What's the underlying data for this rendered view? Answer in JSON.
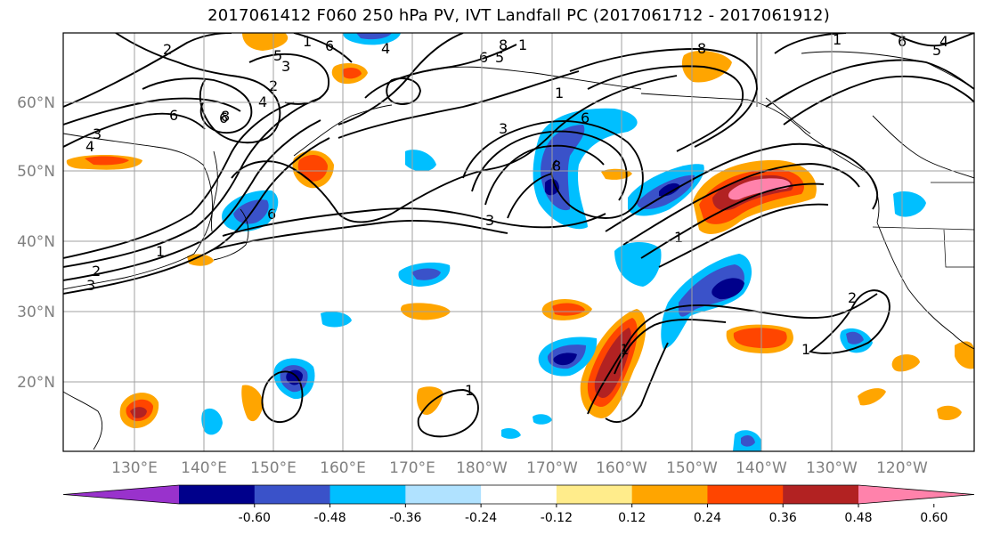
{
  "title": "2017061412 F060 250 hPa PV, IVT Landfall PC (2017061712 - 2017061912)",
  "lat_labels": [
    "60°N",
    "50°N",
    "40°N",
    "30°N",
    "20°N"
  ],
  "lon_labels": [
    "130°E",
    "140°E",
    "150°E",
    "160°E",
    "170°E",
    "180°W",
    "170°W",
    "160°W",
    "150°W",
    "140°W",
    "130°W",
    "120°W"
  ],
  "colorbar": {
    "ticks": [
      "-0.60",
      "-0.48",
      "-0.36",
      "-0.24",
      "-0.12",
      "0.12",
      "0.24",
      "0.36",
      "0.48",
      "0.60"
    ],
    "colors": [
      "#9932cc",
      "#00008b",
      "#3a52c9",
      "#00bfff",
      "#b0e2ff",
      "#ffffff",
      "#ffec8b",
      "#ffa500",
      "#ff4500",
      "#b22222",
      "#ff82ab"
    ]
  },
  "contour_labels": [
    "2",
    "1",
    "6",
    "6",
    "4",
    "5",
    "3",
    "2",
    "4",
    "6",
    "3",
    "4",
    "1",
    "2",
    "3",
    "6",
    "8",
    "1",
    "3",
    "6",
    "5",
    "8",
    "8",
    "1",
    "6",
    "3",
    "8",
    "1",
    "2",
    "1",
    "1",
    "1",
    "1",
    "4",
    "6",
    "5"
  ],
  "colors": {
    "contour": "#000000",
    "grid": "#a0a0a0",
    "coast": "#000000"
  }
}
